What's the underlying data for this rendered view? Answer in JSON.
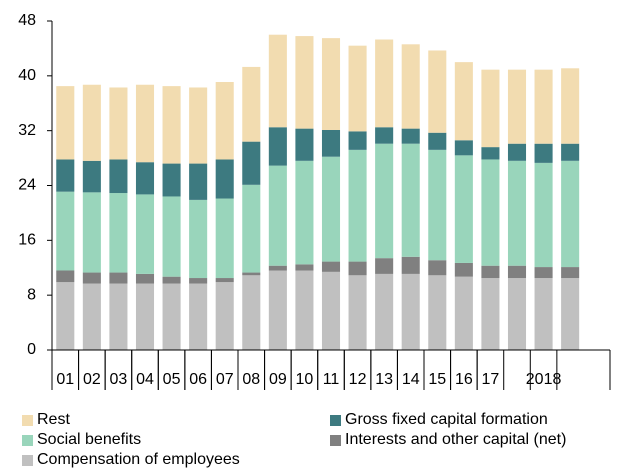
{
  "chart_data": {
    "type": "stacked_bar",
    "categories": [
      "01",
      "02",
      "03",
      "04",
      "05",
      "06",
      "07",
      "08",
      "09",
      "10",
      "11",
      "12",
      "13",
      "14",
      "15",
      "16",
      "17",
      null,
      "2018",
      null,
      null
    ],
    "series": [
      {
        "name": "Compensation of employees",
        "color": "#c0c0c0",
        "values": [
          9.9,
          9.7,
          9.7,
          9.7,
          9.7,
          9.7,
          9.9,
          10.9,
          11.6,
          11.6,
          11.4,
          10.9,
          11.1,
          11.1,
          10.9,
          10.7,
          10.5,
          10.5,
          10.5,
          10.5,
          null
        ]
      },
      {
        "name": "Interests and other capital (net)",
        "color": "#808080",
        "values": [
          1.7,
          1.6,
          1.6,
          1.4,
          1.0,
          0.8,
          0.6,
          0.4,
          0.7,
          0.9,
          1.5,
          2.0,
          2.3,
          2.5,
          2.2,
          2.0,
          1.8,
          1.8,
          1.6,
          1.6,
          null
        ]
      },
      {
        "name": "Social benefits",
        "color": "#99d5bb",
        "values": [
          11.5,
          11.7,
          11.6,
          11.6,
          11.7,
          11.4,
          11.6,
          12.8,
          14.6,
          15.1,
          15.3,
          16.3,
          16.7,
          16.5,
          16.1,
          15.7,
          15.5,
          15.3,
          15.2,
          15.5,
          null
        ]
      },
      {
        "name": "Gross fixed capital formation",
        "color": "#3d7a80",
        "values": [
          4.7,
          4.6,
          4.9,
          4.7,
          4.8,
          5.3,
          5.7,
          6.3,
          5.6,
          4.7,
          3.9,
          2.7,
          2.4,
          2.2,
          2.5,
          2.2,
          1.8,
          2.5,
          2.8,
          2.5,
          null
        ]
      },
      {
        "name": "Rest",
        "color": "#f2dcb0",
        "values": [
          10.7,
          11.1,
          10.5,
          11.3,
          11.3,
          11.1,
          11.3,
          10.9,
          13.5,
          13.5,
          13.4,
          12.5,
          12.8,
          12.3,
          12.0,
          11.4,
          11.3,
          10.8,
          10.8,
          11.0,
          null
        ]
      }
    ],
    "ylim": [
      0,
      48
    ],
    "yticks": [
      0,
      8,
      16,
      24,
      32,
      40,
      48
    ]
  }
}
